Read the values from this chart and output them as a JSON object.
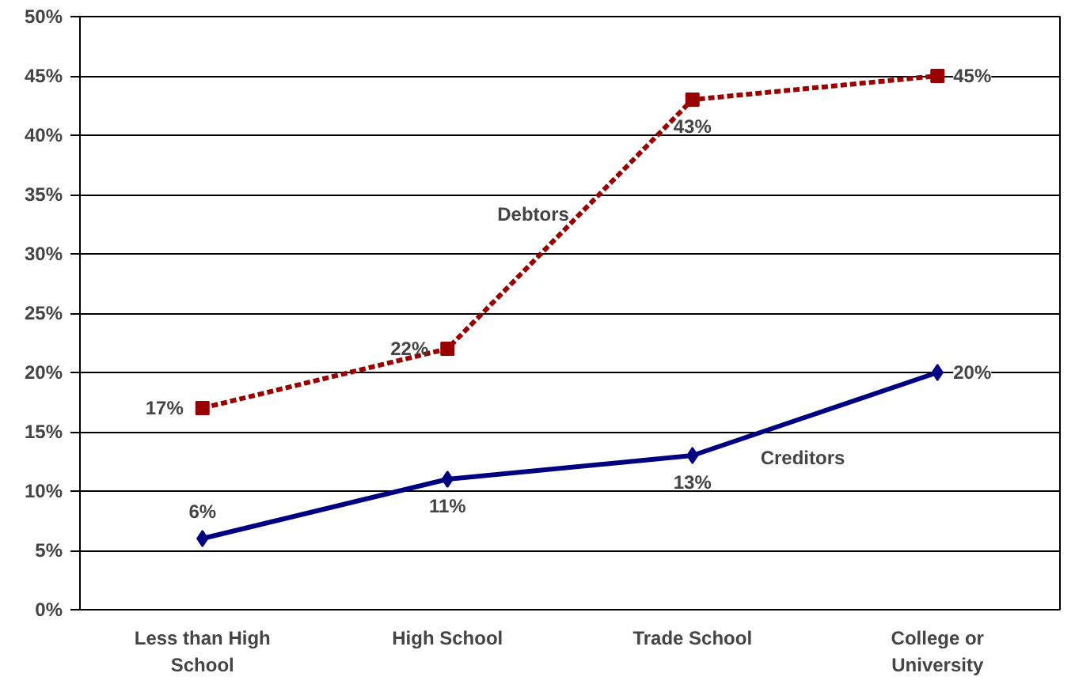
{
  "chart_data": {
    "type": "line",
    "categories": [
      "Less than High School",
      "High School",
      "Trade School",
      "College or University"
    ],
    "series": [
      {
        "name": "Debtors",
        "color": "#990000",
        "values": [
          17,
          22,
          43,
          45
        ],
        "value_labels": [
          "17%",
          "22%",
          "43%",
          "45%"
        ],
        "line_style": "dashed",
        "marker": "square"
      },
      {
        "name": "Creditors",
        "color": "#000080",
        "values": [
          6,
          11,
          13,
          20
        ],
        "value_labels": [
          "6%",
          "11%",
          "13%",
          "20%"
        ],
        "line_style": "solid",
        "marker": "diamond"
      }
    ],
    "ylim": [
      0,
      50
    ],
    "yticks": [
      {
        "value": 0,
        "label": "0%"
      },
      {
        "value": 5,
        "label": "5%"
      },
      {
        "value": 10,
        "label": "10%"
      },
      {
        "value": 15,
        "label": "15%"
      },
      {
        "value": 20,
        "label": "20%"
      },
      {
        "value": 25,
        "label": "25%"
      },
      {
        "value": 30,
        "label": "30%"
      },
      {
        "value": 35,
        "label": "35%"
      },
      {
        "value": 40,
        "label": "40%"
      },
      {
        "value": 45,
        "label": "45%"
      },
      {
        "value": 50,
        "label": "50%"
      }
    ],
    "grid": "y"
  }
}
